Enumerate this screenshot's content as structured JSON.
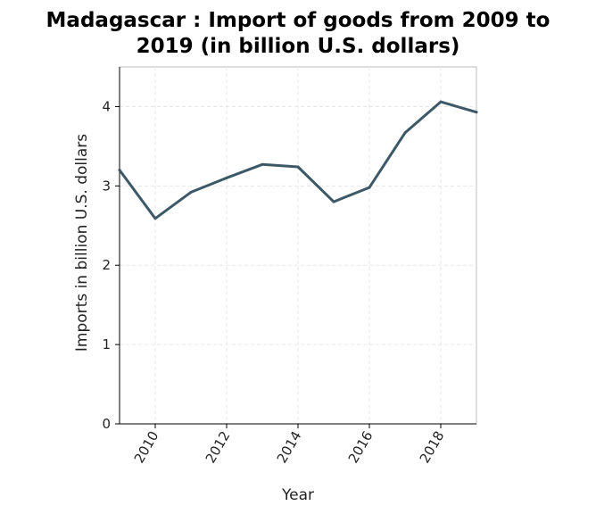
{
  "chart_data": {
    "type": "line",
    "title_lines": [
      "Madagascar : Import of goods from 2009 to",
      "2019 (in billion U.S. dollars)"
    ],
    "xlabel": "Year",
    "ylabel": "Imports in billion U.S. dollars",
    "xlim": [
      2009,
      2019
    ],
    "ylim": [
      0,
      4.5
    ],
    "x_ticks": [
      2010,
      2012,
      2014,
      2016,
      2018
    ],
    "y_ticks": [
      0,
      1,
      2,
      3,
      4
    ],
    "grid": true,
    "line_color": "#3d5866",
    "series": [
      {
        "x": [
          2009,
          2010,
          2011,
          2012,
          2013,
          2014,
          2015,
          2016,
          2017,
          2018,
          2019
        ],
        "values": [
          3.2,
          2.59,
          2.92,
          3.1,
          3.27,
          3.24,
          2.8,
          2.98,
          3.67,
          4.06,
          3.93
        ]
      }
    ]
  }
}
